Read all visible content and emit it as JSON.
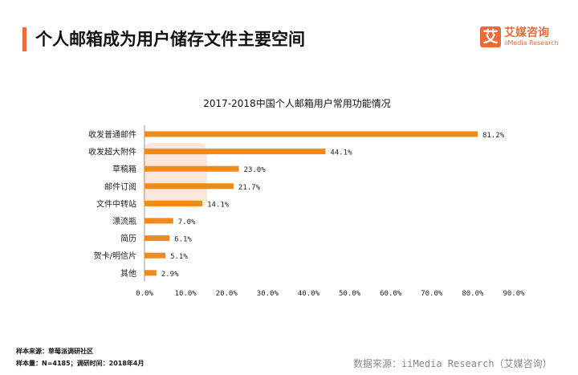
{
  "header": {
    "title": "个人邮箱成为用户储存文件主要空间",
    "logo_mark": "艾",
    "logo_cn": "艾媒咨询",
    "logo_en": "iiMedia Research"
  },
  "chart_data": {
    "type": "bar",
    "orientation": "horizontal",
    "title": "2017-2018中国个人邮箱用户常用功能情况",
    "categories": [
      "收发普通邮件",
      "收发超大附件",
      "草稿箱",
      "邮件订阅",
      "文件中转站",
      "漂流瓶",
      "简历",
      "贺卡/明信片",
      "其他"
    ],
    "values": [
      81.2,
      44.1,
      23.0,
      21.7,
      14.1,
      7.0,
      6.1,
      5.1,
      2.9
    ],
    "data_labels": [
      "81.2%",
      "44.1%",
      "23.0%",
      "21.7%",
      "14.1%",
      "7.0%",
      "6.1%",
      "5.1%",
      "2.9%"
    ],
    "xlim": [
      0,
      90
    ],
    "x_ticks": [
      "0.0%",
      "10.0%",
      "20.0%",
      "30.0%",
      "40.0%",
      "50.0%",
      "60.0%",
      "70.0%",
      "80.0%",
      "90.0%"
    ],
    "grid": false,
    "bar_color": "#f08a1c"
  },
  "footer": {
    "sample_source": "样本来源：草莓派调研社区",
    "sample_size": "样本量：N=4185；调研时间：2018年4月",
    "data_source": "数据来源：iiMedia Research（艾媒咨询）"
  }
}
